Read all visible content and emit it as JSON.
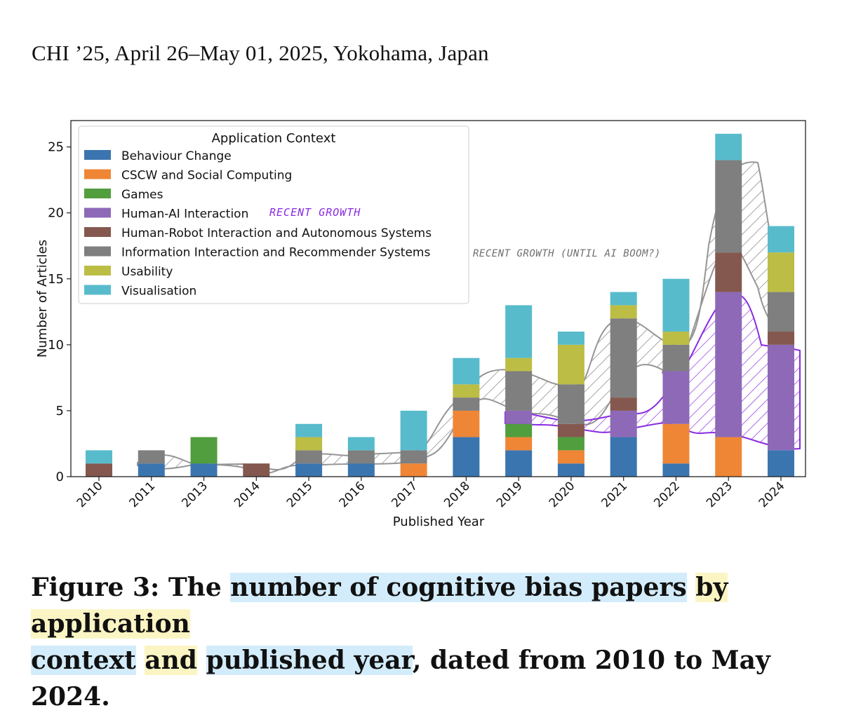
{
  "header": {
    "text": "CHI ’25, April 26–May 01, 2025, Yokohama, Japan"
  },
  "caption": {
    "prefix": "Figure 3: The ",
    "seg1": "number of cognitive bias papers",
    "seg2": "by application",
    "seg3": "context",
    "seg4": "and",
    "seg5": "published year",
    "suffix": ", dated from 2010 to May 2024."
  },
  "annotations": {
    "human_ai": "RECENT GROWTH",
    "info": "RECENT GROWTH (UNTIL AI BOOM?)"
  },
  "colors": {
    "annotation_purple": "#8a2be2",
    "annotation_grey": "#7a7a7a",
    "highlight_blue": "#d3ecfb",
    "highlight_yellow": "#fbf5c4"
  },
  "chart_data": {
    "type": "bar",
    "stacked": true,
    "title": "",
    "xlabel": "Published Year",
    "ylabel": "Number of Articles",
    "ylim": [
      0,
      27
    ],
    "yticks": [
      0,
      5,
      10,
      15,
      20,
      25
    ],
    "grid": false,
    "legend": {
      "title": "Application Context",
      "placement": "top-left"
    },
    "categories": [
      "2010",
      "2011",
      "2013",
      "2014",
      "2015",
      "2016",
      "2017",
      "2018",
      "2019",
      "2020",
      "2021",
      "2022",
      "2023",
      "2024"
    ],
    "series": [
      {
        "name": "Behaviour Change",
        "color": "#3b75af",
        "values": [
          0,
          1,
          1,
          0,
          1,
          1,
          0,
          3,
          2,
          1,
          3,
          1,
          0,
          2
        ]
      },
      {
        "name": "CSCW and Social Computing",
        "color": "#ef8636",
        "values": [
          0,
          0,
          0,
          0,
          0,
          0,
          1,
          2,
          1,
          1,
          0,
          3,
          3,
          0
        ]
      },
      {
        "name": "Games",
        "color": "#519e3e",
        "values": [
          0,
          0,
          2,
          0,
          0,
          0,
          0,
          0,
          1,
          1,
          0,
          0,
          0,
          0
        ]
      },
      {
        "name": "Human-AI Interaction",
        "color": "#8d69b8",
        "values": [
          0,
          0,
          0,
          0,
          0,
          0,
          0,
          0,
          1,
          0,
          2,
          4,
          11,
          8
        ]
      },
      {
        "name": "Human-Robot Interaction and Autonomous Systems",
        "color": "#84584e",
        "values": [
          1,
          0,
          0,
          1,
          0,
          0,
          0,
          0,
          0,
          1,
          1,
          0,
          3,
          1
        ]
      },
      {
        "name": "Information Interaction and Recommender Systems",
        "color": "#7f7f7f",
        "values": [
          0,
          1,
          0,
          0,
          1,
          1,
          1,
          1,
          3,
          3,
          6,
          2,
          7,
          3
        ]
      },
      {
        "name": "Usability",
        "color": "#bcbd45",
        "values": [
          0,
          0,
          0,
          0,
          1,
          0,
          0,
          1,
          1,
          3,
          1,
          1,
          0,
          3
        ]
      },
      {
        "name": "Visualisation",
        "color": "#58bbcc",
        "values": [
          1,
          0,
          0,
          0,
          1,
          1,
          3,
          2,
          4,
          1,
          1,
          4,
          2,
          2
        ]
      }
    ]
  }
}
